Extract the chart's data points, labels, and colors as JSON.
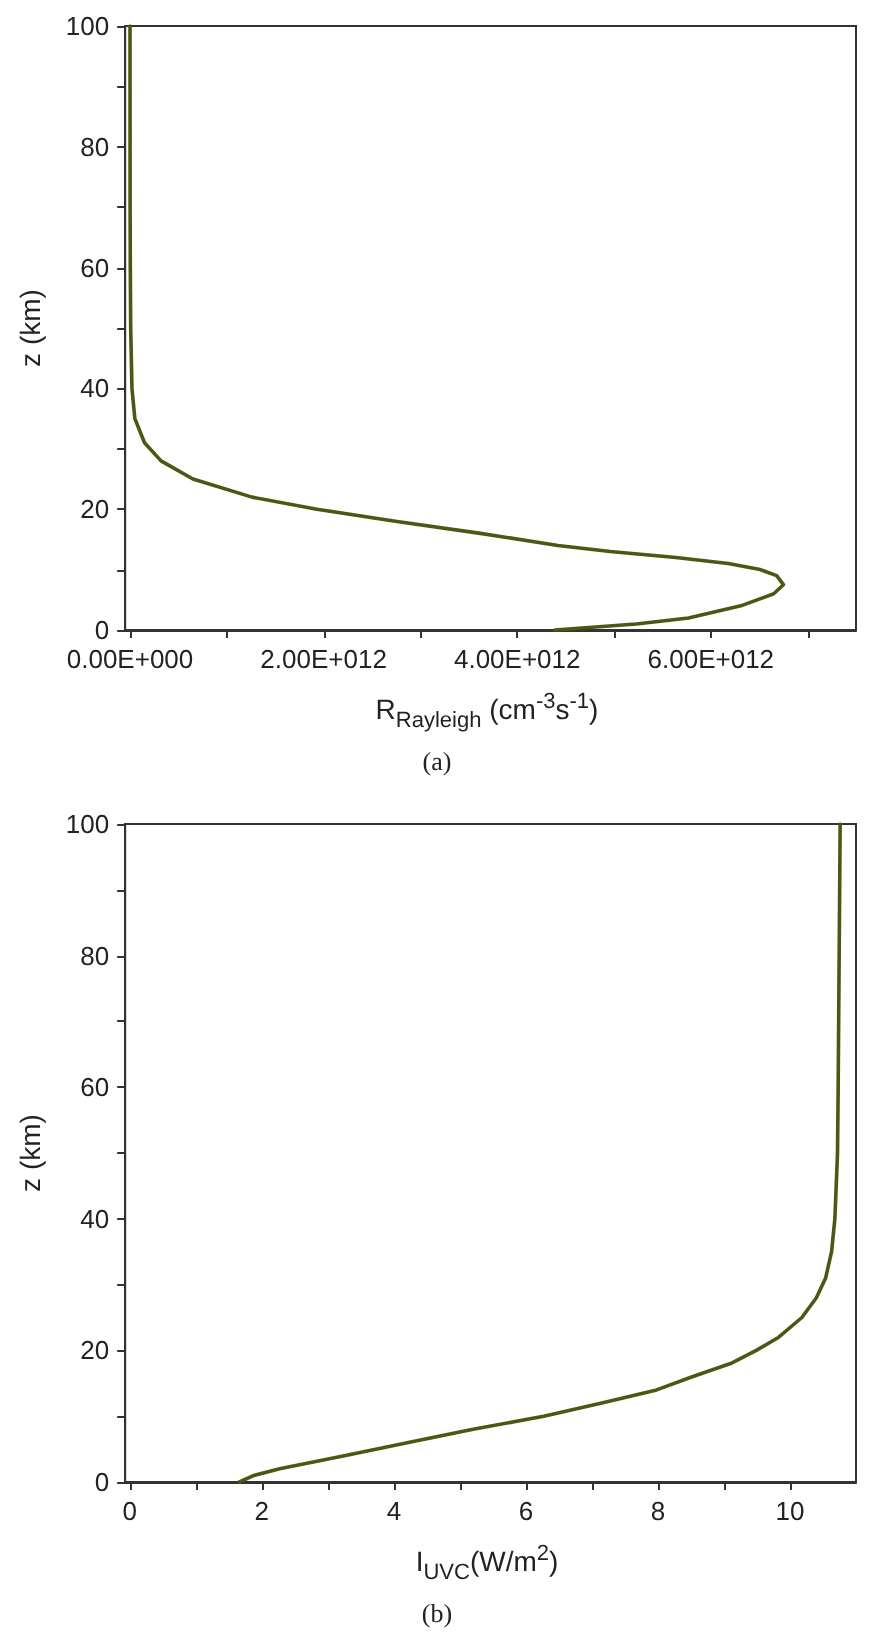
{
  "chart_data": [
    {
      "type": "line",
      "title": "(a)",
      "xlabel": "R$_{Rayleigh}$ (cm$^{-3}$s$^{-1}$)",
      "ylabel": "z (km)",
      "grid": false,
      "marker": "none",
      "line_style": "solid",
      "series": [
        {
          "color": "#4f5512",
          "x": [
            4390000000000.0,
            5230000000000.0,
            5770000000000.0,
            6310000000000.0,
            6650000000000.0,
            6750000000000.0,
            6680000000000.0,
            6510000000000.0,
            6180000000000.0,
            5640000000000.0,
            4960000000000.0,
            4420000000000.0,
            3620000000000.0,
            2740000000000.0,
            1930000000000.0,
            1260000000000.0,
            650000000000.0,
            320000000000.0,
            150000000000.0,
            50000000000.0,
            20000000000.0,
            7000000000.0,
            3000000000.0,
            1000000000.0,
            0
          ],
          "values": [
            0,
            1,
            2,
            4,
            6,
            7.5,
            9,
            10,
            11,
            12,
            13,
            14,
            16,
            18,
            20,
            22,
            25,
            28,
            31,
            35,
            40,
            50,
            60,
            70,
            100
          ]
        }
      ],
      "xlim": [
        -50000000000.0,
        7500000000000.0
      ],
      "xticks": [
        {
          "value": 0,
          "label": "0.00E+000"
        },
        {
          "value": 1000000000000.0,
          "label": null
        },
        {
          "value": 2000000000000.0,
          "label": "2.00E+012"
        },
        {
          "value": 3000000000000.0,
          "label": null
        },
        {
          "value": 4000000000000.0,
          "label": "4.00E+012"
        },
        {
          "value": 5000000000000.0,
          "label": null
        },
        {
          "value": 6000000000000.0,
          "label": "6.00E+012"
        },
        {
          "value": 7000000000000.0,
          "label": null
        }
      ],
      "ylim": [
        0,
        100
      ],
      "yticks": [
        0,
        {
          "value": 10,
          "label": null
        },
        20,
        {
          "value": 30,
          "label": null
        },
        40,
        {
          "value": 50,
          "label": null
        },
        60,
        {
          "value": 70,
          "label": null
        },
        80,
        {
          "value": 90,
          "label": null
        },
        100
      ]
    },
    {
      "type": "line",
      "title": "(b)",
      "xlabel": "I$_{UVC}$(W/m$^{2}$)",
      "ylabel": "z (km)",
      "grid": false,
      "marker": "none",
      "line_style": "solid",
      "series": [
        {
          "color": "#4f5512",
          "x": [
            1.66,
            1.88,
            2.27,
            3.25,
            4.22,
            5.2,
            6.27,
            7.15,
            7.98,
            8.52,
            9.1,
            9.49,
            9.83,
            10.18,
            10.4,
            10.54,
            10.63,
            10.68,
            10.72,
            10.73,
            10.76
          ],
          "values": [
            0,
            1,
            2,
            4,
            6,
            8,
            10,
            12,
            14,
            16,
            18,
            20,
            22,
            25,
            28,
            31,
            35,
            40,
            50,
            60,
            100
          ]
        }
      ],
      "xlim": [
        -0.07,
        11
      ],
      "xticks": [
        0,
        {
          "value": 1,
          "label": null
        },
        2,
        {
          "value": 3,
          "label": null
        },
        4,
        {
          "value": 5,
          "label": null
        },
        6,
        {
          "value": 7,
          "label": null
        },
        8,
        {
          "value": 9,
          "label": null
        },
        10
      ],
      "ylim": [
        0,
        100
      ],
      "yticks": [
        0,
        {
          "value": 10,
          "label": null
        },
        20,
        {
          "value": 30,
          "label": null
        },
        40,
        {
          "value": 50,
          "label": null
        },
        60,
        {
          "value": 70,
          "label": null
        },
        80,
        {
          "value": 90,
          "label": null
        },
        100
      ]
    }
  ]
}
